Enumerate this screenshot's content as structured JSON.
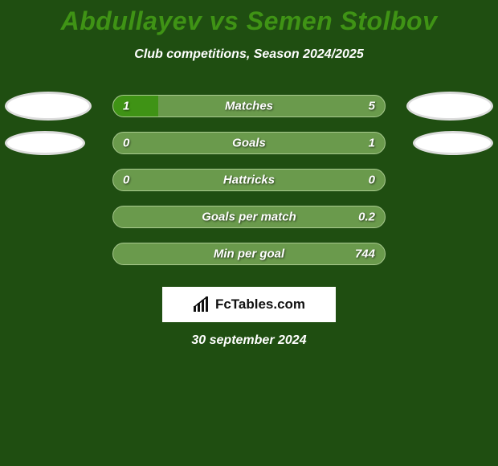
{
  "background_color": "#1f4e11",
  "title": {
    "text": "Abdullayev vs Semen Stolbov",
    "color": "#3f9315",
    "fontsize": 32
  },
  "subtitle": {
    "text": "Club competitions, Season 2024/2025",
    "color": "#ffffff",
    "fontsize": 16
  },
  "player_left": {
    "avatar_fill": "#ffffff",
    "avatar_border": "#dddddd"
  },
  "player_right": {
    "avatar_fill": "#ffffff",
    "avatar_border": "#dddddd"
  },
  "bar_style": {
    "track_color": "#6a9a4c",
    "fill_color": "#3f9315",
    "border_color": "#a8c98f",
    "text_color": "#ffffff",
    "label_fontsize": 15
  },
  "rows": [
    {
      "label": "Matches",
      "left_value": "1",
      "right_value": "5",
      "left_raw": 1,
      "right_raw": 5,
      "fill_pct": 16.7,
      "show_left_avatar": true,
      "show_right_avatar": true,
      "left_avatar_w": 108,
      "left_avatar_h": 36,
      "right_avatar_w": 108,
      "right_avatar_h": 36
    },
    {
      "label": "Goals",
      "left_value": "0",
      "right_value": "1",
      "left_raw": 0,
      "right_raw": 1,
      "fill_pct": 0,
      "show_left_avatar": true,
      "show_right_avatar": true,
      "left_avatar_w": 100,
      "left_avatar_h": 30,
      "right_avatar_w": 100,
      "right_avatar_h": 30
    },
    {
      "label": "Hattricks",
      "left_value": "0",
      "right_value": "0",
      "left_raw": 0,
      "right_raw": 0,
      "fill_pct": 0,
      "show_left_avatar": false,
      "show_right_avatar": false
    },
    {
      "label": "Goals per match",
      "left_value": "",
      "right_value": "0.2",
      "left_raw": 0,
      "right_raw": 0.2,
      "fill_pct": 0,
      "show_left_avatar": false,
      "show_right_avatar": false
    },
    {
      "label": "Min per goal",
      "left_value": "",
      "right_value": "744",
      "left_raw": 0,
      "right_raw": 744,
      "fill_pct": 0,
      "show_left_avatar": false,
      "show_right_avatar": false
    }
  ],
  "branding": {
    "text": "FcTables.com",
    "icon_name": "barchart-icon",
    "bg": "#ffffff",
    "text_color": "#111111"
  },
  "date": {
    "text": "30 september 2024",
    "color": "#ffffff",
    "fontsize": 16
  }
}
